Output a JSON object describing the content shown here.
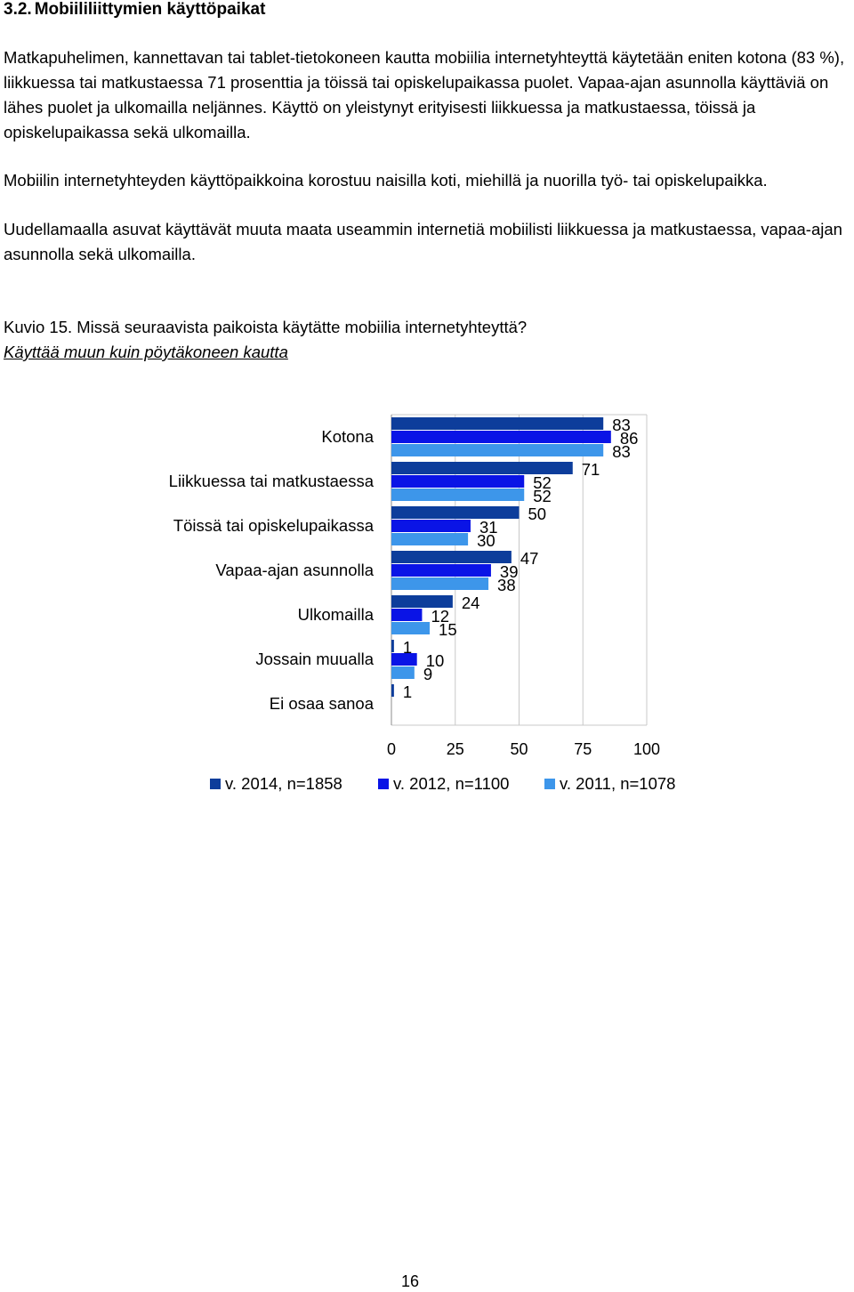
{
  "section": {
    "number": "3.2.",
    "title": "Mobiililiittymien käyttöpaikat"
  },
  "paragraphs": [
    "Matkapuhelimen, kannettavan tai tablet-tietokoneen kautta mobiilia internetyhteyttä käytetään eniten kotona (83 %), liikkuessa tai matkustaessa 71 prosenttia ja töissä tai opiskelupaikassa puolet. Vapaa-ajan asunnolla käyttäviä on lähes puolet ja ulkomailla neljännes. Käyttö on yleistynyt erityisesti liikkuessa ja matkustaessa, töissä ja opiskelupaikassa sekä ulkomailla.",
    "Mobiilin internetyhteyden käyttöpaikkoina korostuu naisilla koti, miehillä ja nuorilla työ- tai opiskelupaikka.",
    "Uudellamaalla asuvat käyttävät muuta maata useammin internetiä mobiilisti liikkuessa ja matkustaessa, vapaa-ajan asunnolla sekä ulkomailla."
  ],
  "figure": {
    "caption": "Kuvio 15. Missä seuraavista paikoista käytätte mobiilia internetyhteyttä?",
    "subcaption": "Käyttää muun kuin pöytäkoneen kautta"
  },
  "chart_data": {
    "type": "bar",
    "orientation": "horizontal",
    "categories": [
      "Kotona",
      "Liikkuessa tai matkustaessa",
      "Töissä tai opiskelupaikassa",
      "Vapaa-ajan asunnolla",
      "Ulkomailla",
      "Jossain muualla",
      "Ei osaa sanoa"
    ],
    "series": [
      {
        "name": "v. 2014, n=1858",
        "color": "#0d3d9b",
        "values": [
          83,
          71,
          50,
          47,
          24,
          1,
          1
        ]
      },
      {
        "name": "v. 2012, n=1100",
        "color": "#0a14e6",
        "values": [
          86,
          52,
          31,
          39,
          12,
          10,
          null
        ]
      },
      {
        "name": "v. 2011, n=1078",
        "color": "#3d96ea",
        "values": [
          83,
          52,
          30,
          38,
          15,
          9,
          null
        ]
      }
    ],
    "xlim": [
      0,
      100
    ],
    "x_ticks": [
      "0",
      "25",
      "50",
      "75",
      "100"
    ],
    "grid": true,
    "legend_position": "bottom",
    "data_labels": true
  },
  "page_number": "16"
}
